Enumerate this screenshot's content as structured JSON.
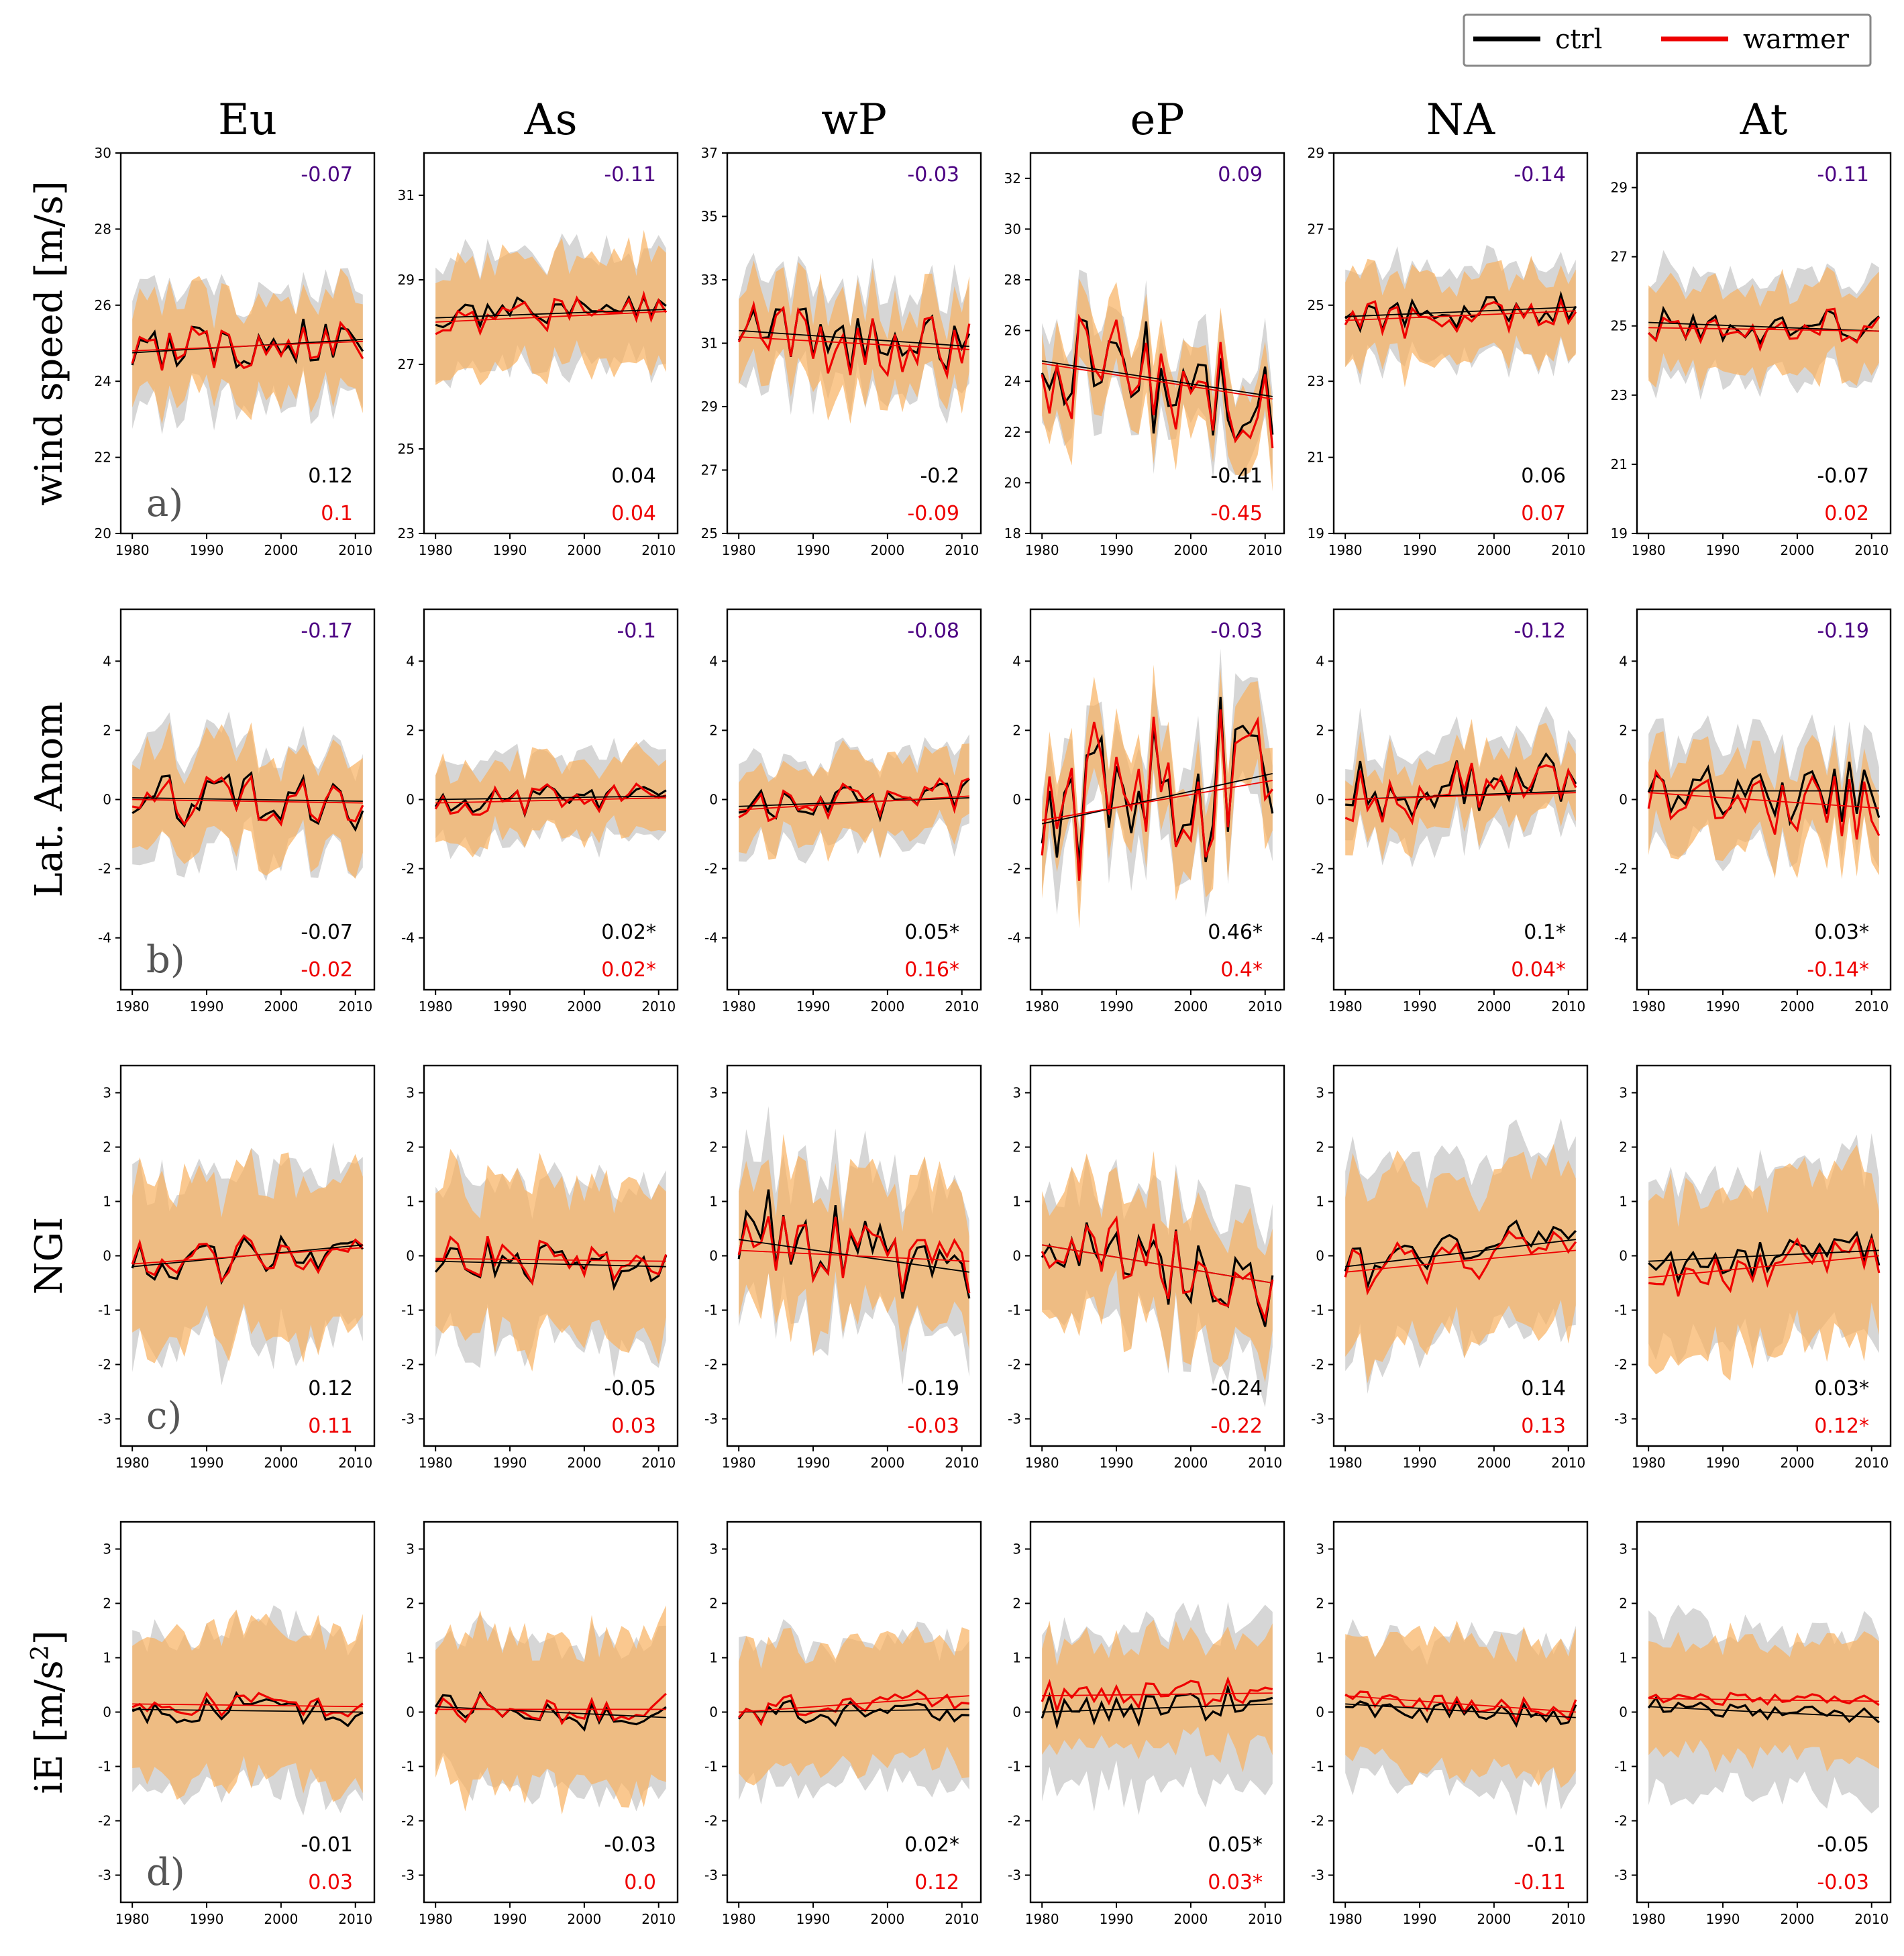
{
  "legend": {
    "entries": [
      {
        "label": "ctrl",
        "color": "#000000"
      },
      {
        "label": "warmer",
        "color": "#ee0000"
      }
    ],
    "placement": "top-right"
  },
  "columns": [
    "Eu",
    "As",
    "wP",
    "eP",
    "NA",
    "At"
  ],
  "colors": {
    "ctrl": "#000000",
    "warmer": "#ee0000",
    "purple": "#4b0082",
    "band_ctrl": "#cfcfcf",
    "band_warmer": "#f8b060"
  },
  "chart_data": [
    {
      "row": "a",
      "type": "line",
      "panel_tag": "a)",
      "ylabel": "wind speed [m/s]",
      "ylabel_sup": "",
      "x": {
        "start": 1980,
        "end": 2011,
        "ticks": [
          "1980",
          "1990",
          "2000",
          "2010"
        ]
      },
      "panels": [
        {
          "col": "Eu",
          "ylim": [
            20,
            30
          ],
          "yticks": [
            "20",
            "22",
            "24",
            "26",
            "28",
            "30"
          ],
          "top": "-0.07",
          "ctrl_stat": "0.12",
          "warm_stat": "0.1",
          "ctrl_mean": 25.0,
          "ctrl_var": 0.55,
          "warm_mean": 24.95,
          "warm_var": 0.5,
          "ctrl_trend": [
            24.75,
            25.1
          ],
          "warm_trend": [
            24.8,
            25.05
          ],
          "band_ctrl": 1.4,
          "band_warm": 1.2
        },
        {
          "col": "As",
          "ylim": [
            23,
            32
          ],
          "yticks": [
            "23",
            "25",
            "27",
            "29",
            "31"
          ],
          "top": "-0.11",
          "ctrl_stat": "0.04",
          "warm_stat": "0.04",
          "ctrl_mean": 28.2,
          "ctrl_var": 0.35,
          "warm_mean": 28.15,
          "warm_var": 0.4,
          "ctrl_trend": [
            28.1,
            28.3
          ],
          "warm_trend": [
            28.0,
            28.25
          ],
          "band_ctrl": 1.3,
          "band_warm": 1.2
        },
        {
          "col": "wP",
          "ylim": [
            25,
            37
          ],
          "yticks": [
            "25",
            "27",
            "29",
            "31",
            "33",
            "35",
            "37"
          ],
          "top": "-0.03",
          "ctrl_stat": "-0.2",
          "warm_stat": "-0.09",
          "ctrl_mean": 31.0,
          "ctrl_var": 0.9,
          "warm_mean": 30.9,
          "warm_var": 1.0,
          "ctrl_trend": [
            31.4,
            30.9
          ],
          "warm_trend": [
            31.2,
            30.8
          ],
          "band_ctrl": 1.5,
          "band_warm": 1.3
        },
        {
          "col": "eP",
          "ylim": [
            18,
            33
          ],
          "yticks": [
            "18",
            "20",
            "22",
            "24",
            "26",
            "28",
            "30",
            "32"
          ],
          "top": "0.09",
          "ctrl_stat": "-0.41",
          "warm_stat": "-0.45",
          "ctrl_mean": 24.2,
          "ctrl_var": 2.0,
          "warm_mean": 24.1,
          "warm_var": 2.1,
          "ctrl_trend": [
            24.8,
            23.4
          ],
          "warm_trend": [
            24.7,
            23.3
          ],
          "band_ctrl": 1.6,
          "band_warm": 1.5
        },
        {
          "col": "NA",
          "ylim": [
            19,
            29
          ],
          "yticks": [
            "19",
            "21",
            "23",
            "25",
            "27",
            "29"
          ],
          "top": "-0.14",
          "ctrl_stat": "0.06",
          "warm_stat": "0.07",
          "ctrl_mean": 24.85,
          "ctrl_var": 0.4,
          "warm_mean": 24.8,
          "warm_var": 0.45,
          "ctrl_trend": [
            24.7,
            24.95
          ],
          "warm_trend": [
            24.6,
            24.85
          ],
          "band_ctrl": 1.2,
          "band_warm": 1.0
        },
        {
          "col": "At",
          "ylim": [
            19,
            30
          ],
          "yticks": [
            "19",
            "21",
            "23",
            "25",
            "27",
            "29"
          ],
          "top": "-0.11",
          "ctrl_stat": "-0.07",
          "warm_stat": "0.02",
          "ctrl_mean": 24.95,
          "ctrl_var": 0.5,
          "warm_mean": 24.9,
          "warm_var": 0.5,
          "ctrl_trend": [
            25.1,
            24.85
          ],
          "warm_trend": [
            24.95,
            24.85
          ],
          "band_ctrl": 1.4,
          "band_warm": 1.2
        }
      ]
    },
    {
      "row": "b",
      "type": "line",
      "panel_tag": "b)",
      "ylabel": "Lat. Anom",
      "ylabel_sup": "",
      "x": {
        "start": 1980,
        "end": 2011,
        "ticks": [
          "1980",
          "1990",
          "2000",
          "2010"
        ]
      },
      "panels": [
        {
          "col": "Eu",
          "ylim": [
            -5.5,
            5.5
          ],
          "yticks": [
            "-4",
            "-2",
            "0",
            "2",
            "4"
          ],
          "top": "-0.17",
          "ctrl_stat": "-0.07",
          "warm_stat": "-0.02",
          "ctrl_mean": 0.0,
          "ctrl_var": 0.7,
          "warm_mean": 0.0,
          "warm_var": 0.6,
          "ctrl_trend": [
            0.05,
            -0.05
          ],
          "warm_trend": [
            0.0,
            -0.1
          ],
          "band_ctrl": 1.5,
          "band_warm": 1.3
        },
        {
          "col": "As",
          "ylim": [
            -5.5,
            5.5
          ],
          "yticks": [
            "-4",
            "-2",
            "0",
            "2",
            "4"
          ],
          "top": "-0.1",
          "ctrl_stat": "0.02*",
          "warm_stat": "0.02*",
          "ctrl_mean": 0.0,
          "ctrl_var": 0.4,
          "warm_mean": -0.05,
          "warm_var": 0.45,
          "ctrl_trend": [
            0.0,
            0.1
          ],
          "warm_trend": [
            -0.1,
            0.05
          ],
          "band_ctrl": 1.1,
          "band_warm": 1.0
        },
        {
          "col": "wP",
          "ylim": [
            -5.5,
            5.5
          ],
          "yticks": [
            "-4",
            "-2",
            "0",
            "2",
            "4"
          ],
          "top": "-0.08",
          "ctrl_stat": "0.05*",
          "warm_stat": "0.16*",
          "ctrl_mean": -0.1,
          "ctrl_var": 0.45,
          "warm_mean": -0.1,
          "warm_var": 0.5,
          "ctrl_trend": [
            -0.2,
            0.05
          ],
          "warm_trend": [
            -0.3,
            0.1
          ],
          "band_ctrl": 1.2,
          "band_warm": 1.0
        },
        {
          "col": "eP",
          "ylim": [
            -5.5,
            5.5
          ],
          "yticks": [
            "-4",
            "-2",
            "0",
            "2",
            "4"
          ],
          "top": "-0.03",
          "ctrl_stat": "0.46*",
          "warm_stat": "0.4*",
          "ctrl_mean": 0.0,
          "ctrl_var": 2.0,
          "warm_mean": 0.0,
          "warm_var": 2.1,
          "ctrl_trend": [
            -0.7,
            0.75
          ],
          "warm_trend": [
            -0.6,
            0.55
          ],
          "band_ctrl": 1.3,
          "band_warm": 1.2
        },
        {
          "col": "NA",
          "ylim": [
            -5.5,
            5.5
          ],
          "yticks": [
            "-4",
            "-2",
            "0",
            "2",
            "4"
          ],
          "top": "-0.12",
          "ctrl_stat": "0.1*",
          "warm_stat": "0.04*",
          "ctrl_mean": 0.1,
          "ctrl_var": 0.9,
          "warm_mean": 0.05,
          "warm_var": 1.0,
          "ctrl_trend": [
            0.0,
            0.25
          ],
          "warm_trend": [
            0.0,
            0.2
          ],
          "band_ctrl": 1.2,
          "band_warm": 1.0
        },
        {
          "col": "At",
          "ylim": [
            -5.5,
            5.5
          ],
          "yticks": [
            "-4",
            "-2",
            "0",
            "2",
            "4"
          ],
          "top": "-0.19",
          "ctrl_stat": "0.03*",
          "warm_stat": "-0.14*",
          "ctrl_mean": 0.1,
          "ctrl_var": 0.8,
          "warm_mean": 0.0,
          "warm_var": 0.8,
          "ctrl_trend": [
            0.25,
            0.25
          ],
          "warm_trend": [
            0.2,
            -0.25
          ],
          "band_ctrl": 1.4,
          "band_warm": 1.2
        }
      ]
    },
    {
      "row": "c",
      "type": "line",
      "panel_tag": "c)",
      "ylabel": "NGI",
      "ylabel_sup": "",
      "x": {
        "start": 1980,
        "end": 2011,
        "ticks": [
          "1980",
          "1990",
          "2000",
          "2010"
        ]
      },
      "panels": [
        {
          "col": "Eu",
          "ylim": [
            -3.5,
            3.5
          ],
          "yticks": [
            "-3",
            "-2",
            "-1",
            "0",
            "1",
            "2",
            "3"
          ],
          "top": "",
          "ctrl_stat": "0.12",
          "warm_stat": "0.11",
          "ctrl_mean": 0.0,
          "ctrl_var": 0.35,
          "warm_mean": -0.05,
          "warm_var": 0.35,
          "ctrl_trend": [
            -0.2,
            0.2
          ],
          "warm_trend": [
            -0.15,
            0.15
          ],
          "band_ctrl": 1.5,
          "band_warm": 1.4
        },
        {
          "col": "As",
          "ylim": [
            -3.5,
            3.5
          ],
          "yticks": [
            "-3",
            "-2",
            "-1",
            "0",
            "1",
            "2",
            "3"
          ],
          "top": "",
          "ctrl_stat": "-0.05",
          "warm_stat": "0.03",
          "ctrl_mean": 0.0,
          "ctrl_var": 0.35,
          "warm_mean": -0.1,
          "warm_var": 0.35,
          "ctrl_trend": [
            -0.1,
            -0.2
          ],
          "warm_trend": [
            -0.05,
            -0.1
          ],
          "band_ctrl": 1.4,
          "band_warm": 1.3
        },
        {
          "col": "wP",
          "ylim": [
            -3.5,
            3.5
          ],
          "yticks": [
            "-3",
            "-2",
            "-1",
            "0",
            "1",
            "2",
            "3"
          ],
          "top": "",
          "ctrl_stat": "-0.19",
          "warm_stat": "-0.03",
          "ctrl_mean": 0.0,
          "ctrl_var": 0.8,
          "warm_mean": 0.0,
          "warm_var": 0.75,
          "ctrl_trend": [
            0.3,
            -0.3
          ],
          "warm_trend": [
            0.1,
            -0.1
          ],
          "band_ctrl": 1.3,
          "band_warm": 1.2
        },
        {
          "col": "eP",
          "ylim": [
            -3.5,
            3.5
          ],
          "yticks": [
            "-3",
            "-2",
            "-1",
            "0",
            "1",
            "2",
            "3"
          ],
          "top": "",
          "ctrl_stat": "-0.24",
          "warm_stat": "-0.22",
          "ctrl_mean": -0.1,
          "ctrl_var": 0.7,
          "warm_mean": -0.1,
          "warm_var": 0.75,
          "ctrl_trend": [
            0.2,
            -0.5
          ],
          "warm_trend": [
            0.2,
            -0.5
          ],
          "band_ctrl": 1.2,
          "band_warm": 1.1
        },
        {
          "col": "NA",
          "ylim": [
            -3.5,
            3.5
          ],
          "yticks": [
            "-3",
            "-2",
            "-1",
            "0",
            "1",
            "2",
            "3"
          ],
          "top": "",
          "ctrl_stat": "0.14",
          "warm_stat": "0.13",
          "ctrl_mean": 0.0,
          "ctrl_var": 0.4,
          "warm_mean": -0.05,
          "warm_var": 0.45,
          "ctrl_trend": [
            -0.2,
            0.3
          ],
          "warm_trend": [
            -0.3,
            0.1
          ],
          "band_ctrl": 1.6,
          "band_warm": 1.4
        },
        {
          "col": "At",
          "ylim": [
            -3.5,
            3.5
          ],
          "yticks": [
            "-3",
            "-2",
            "-1",
            "0",
            "1",
            "2",
            "3"
          ],
          "top": "",
          "ctrl_stat": "0.03*",
          "warm_stat": "0.12*",
          "ctrl_mean": 0.0,
          "ctrl_var": 0.35,
          "warm_mean": -0.1,
          "warm_var": 0.4,
          "ctrl_trend": [
            -0.1,
            0.1
          ],
          "warm_trend": [
            -0.4,
            0.0
          ],
          "band_ctrl": 1.5,
          "band_warm": 1.4
        }
      ]
    },
    {
      "row": "d",
      "type": "line",
      "panel_tag": "d)",
      "ylabel": "iE [m/s",
      "ylabel_sup": "2",
      "ylabel_end": "]",
      "x": {
        "start": 1980,
        "end": 2011,
        "ticks": [
          "1980",
          "1990",
          "2000",
          "2010"
        ]
      },
      "panels": [
        {
          "col": "Eu",
          "ylim": [
            -3.5,
            3.5
          ],
          "yticks": [
            "-3",
            "-2",
            "-1",
            "0",
            "1",
            "2",
            "3"
          ],
          "top": "",
          "ctrl_stat": "-0.01",
          "warm_stat": "0.03",
          "ctrl_mean": 0.05,
          "ctrl_var": 0.25,
          "warm_mean": 0.1,
          "warm_var": 0.2,
          "ctrl_trend": [
            0.05,
            0.0
          ],
          "warm_trend": [
            0.15,
            0.1
          ],
          "band_ctrl": 1.4,
          "band_warm": 1.3
        },
        {
          "col": "As",
          "ylim": [
            -3.5,
            3.5
          ],
          "yticks": [
            "-3",
            "-2",
            "-1",
            "0",
            "1",
            "2",
            "3"
          ],
          "top": "",
          "ctrl_stat": "-0.03",
          "warm_stat": "0.0",
          "ctrl_mean": 0.0,
          "ctrl_var": 0.25,
          "warm_mean": 0.0,
          "warm_var": 0.25,
          "ctrl_trend": [
            0.1,
            -0.1
          ],
          "warm_trend": [
            0.05,
            0.05
          ],
          "band_ctrl": 1.3,
          "band_warm": 1.3
        },
        {
          "col": "wP",
          "ylim": [
            -3.5,
            3.5
          ],
          "yticks": [
            "-3",
            "-2",
            "-1",
            "0",
            "1",
            "2",
            "3"
          ],
          "top": "",
          "ctrl_stat": "0.02*",
          "warm_stat": "0.12",
          "ctrl_mean": 0.05,
          "ctrl_var": 0.25,
          "warm_mean": 0.15,
          "warm_var": 0.25,
          "ctrl_trend": [
            0.0,
            0.05
          ],
          "warm_trend": [
            0.0,
            0.3
          ],
          "band_ctrl": 1.2,
          "band_warm": 1.1
        },
        {
          "col": "eP",
          "ylim": [
            -3.5,
            3.5
          ],
          "yticks": [
            "-3",
            "-2",
            "-1",
            "0",
            "1",
            "2",
            "3"
          ],
          "top": "",
          "ctrl_stat": "0.05*",
          "warm_stat": "0.03*",
          "ctrl_mean": 0.05,
          "ctrl_var": 0.3,
          "warm_mean": 0.3,
          "warm_var": 0.25,
          "ctrl_trend": [
            0.0,
            0.15
          ],
          "warm_trend": [
            0.3,
            0.35
          ],
          "band_ctrl": 1.4,
          "band_warm": 1.0
        },
        {
          "col": "NA",
          "ylim": [
            -3.5,
            3.5
          ],
          "yticks": [
            "-3",
            "-2",
            "-1",
            "0",
            "1",
            "2",
            "3"
          ],
          "top": "",
          "ctrl_stat": "-0.1",
          "warm_stat": "-0.11",
          "ctrl_mean": 0.0,
          "ctrl_var": 0.2,
          "warm_mean": 0.15,
          "warm_var": 0.2,
          "ctrl_trend": [
            0.15,
            -0.1
          ],
          "warm_trend": [
            0.3,
            0.0
          ],
          "band_ctrl": 1.3,
          "band_warm": 1.1
        },
        {
          "col": "At",
          "ylim": [
            -3.5,
            3.5
          ],
          "yticks": [
            "-3",
            "-2",
            "-1",
            "0",
            "1",
            "2",
            "3"
          ],
          "top": "",
          "ctrl_stat": "-0.05",
          "warm_stat": "-0.03",
          "ctrl_mean": 0.0,
          "ctrl_var": 0.15,
          "warm_mean": 0.3,
          "warm_var": 0.12,
          "ctrl_trend": [
            0.1,
            -0.1
          ],
          "warm_trend": [
            0.25,
            0.2
          ],
          "band_ctrl": 1.4,
          "band_warm": 1.0
        }
      ]
    }
  ]
}
